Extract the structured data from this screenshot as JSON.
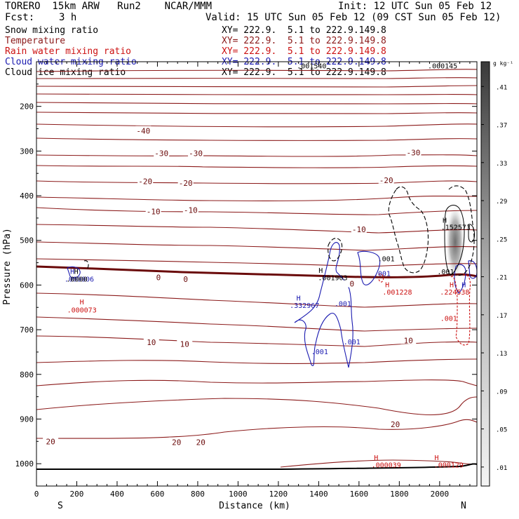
{
  "header": {
    "model": "TORERO  15km ARW   Run2    NCAR/MMM",
    "init": "Init: 12 UTC Sun 05 Feb 12",
    "fcst_label": "Fcst:",
    "fcst_value": "3 h",
    "valid": "Valid: 15 UTC Sun 05 Feb 12 (09 CST Sun 05 Feb 12)"
  },
  "legend": [
    {
      "name": "Snow mixing ratio",
      "color": "#000000",
      "xy": "XY= 222.9.  5.1 to 222.9.149.8"
    },
    {
      "name": "Temperature",
      "color": "#8b1a1a",
      "xy": "XY= 222.9.  5.1 to 222.9.149.8"
    },
    {
      "name": "Rain water mixing ratio",
      "color": "#cc1111",
      "xy": "XY= 222.9.  5.1 to 222.9.149.8"
    },
    {
      "name": "Cloud water mixing ratio",
      "color": "#1a1ab0",
      "xy": "XY= 222.9.  5.1 to 222.9.149.8"
    },
    {
      "name": "Cloud ice mixing ratio",
      "color": "#000000",
      "xy": "XY= 222.9.  5.1 to 222.9.149.8"
    }
  ],
  "chart_data": {
    "type": "cross-section contour",
    "xlabel": "Distance (km)",
    "ylabel": "Pressure (hPa)",
    "xlim": [
      0,
      2185
    ],
    "ylim_pressure": [
      1050,
      100
    ],
    "x_ticks": [
      "0",
      "200",
      "400",
      "600",
      "800",
      "1000",
      "1200",
      "1400",
      "1600",
      "1800",
      "2000"
    ],
    "x_tick_values": [
      0,
      200,
      400,
      600,
      800,
      1000,
      1200,
      1400,
      1600,
      1800,
      2000
    ],
    "y_ticks": [
      "200",
      "300",
      "400",
      "500",
      "600",
      "700",
      "800",
      "900",
      "1000"
    ],
    "y_tick_values": [
      200,
      300,
      400,
      500,
      600,
      700,
      800,
      900,
      1000
    ],
    "end_labels": {
      "left": "S",
      "right": "N"
    },
    "colorbar": {
      "unit": "g kg⁻¹",
      "labels": [
        ".01",
        ".05",
        ".09",
        ".13",
        ".17",
        ".21",
        ".25",
        ".29",
        ".33",
        ".37",
        ".41"
      ]
    },
    "temperature_labels": [
      {
        "text": "-40",
        "x": 530,
        "p": 255
      },
      {
        "text": "-30",
        "x": 620,
        "p": 305
      },
      {
        "text": "-30",
        "x": 790,
        "p": 305
      },
      {
        "text": "-30",
        "x": 1870,
        "p": 303
      },
      {
        "text": "-20",
        "x": 540,
        "p": 368
      },
      {
        "text": "-20",
        "x": 740,
        "p": 372
      },
      {
        "text": "-20",
        "x": 1735,
        "p": 365
      },
      {
        "text": "-10",
        "x": 580,
        "p": 435
      },
      {
        "text": "-10",
        "x": 765,
        "p": 432
      },
      {
        "text": "-10",
        "x": 1600,
        "p": 475
      },
      {
        "text": "0",
        "x": 605,
        "p": 583
      },
      {
        "text": "0",
        "x": 740,
        "p": 587
      },
      {
        "text": "0",
        "x": 1565,
        "p": 597
      },
      {
        "text": "10",
        "x": 570,
        "p": 728
      },
      {
        "text": "10",
        "x": 735,
        "p": 732
      },
      {
        "text": "10",
        "x": 1845,
        "p": 724
      },
      {
        "text": "20",
        "x": 70,
        "p": 950
      },
      {
        "text": "20",
        "x": 695,
        "p": 952
      },
      {
        "text": "20",
        "x": 815,
        "p": 952
      },
      {
        "text": "20",
        "x": 1780,
        "p": 912
      }
    ],
    "annotations": [
      {
        "text": "H",
        "x": 178,
        "p": 575,
        "color": "#1a1ab0"
      },
      {
        "text": "H",
        "x": 197,
        "p": 575,
        "color": "#000000"
      },
      {
        "text": ".000006",
        "x": 212,
        "p": 592,
        "color": "#1a1ab0"
      },
      {
        "text": ".0000",
        "x": 200,
        "p": 592,
        "color": "#000000"
      },
      {
        "text": "H",
        "x": 225,
        "p": 643,
        "color": "#cc1111"
      },
      {
        "text": ".000073",
        "x": 225,
        "p": 661,
        "color": "#cc1111"
      },
      {
        "text": "H",
        "x": 1300,
        "p": 635,
        "color": "#1a1ab0"
      },
      {
        "text": ".332967",
        "x": 1330,
        "p": 651,
        "color": "#1a1ab0"
      },
      {
        "text": ".001",
        "x": 1520,
        "p": 647,
        "color": "#1a1ab0"
      },
      {
        "text": ".001",
        "x": 1565,
        "p": 733,
        "color": "#1a1ab0"
      },
      {
        "text": ".001",
        "x": 1405,
        "p": 755,
        "color": "#1a1ab0"
      },
      {
        "text": "H",
        "x": 1410,
        "p": 573,
        "color": "#000000"
      },
      {
        "text": ".001903",
        "x": 1470,
        "p": 589,
        "color": "#000000"
      },
      {
        "text": ".001",
        "x": 1715,
        "p": 580,
        "color": "#1a1ab0"
      },
      {
        "text": ".001",
        "x": 1735,
        "p": 547,
        "color": "#000000"
      },
      {
        "text": "H",
        "x": 1740,
        "p": 605,
        "color": "#cc1111"
      },
      {
        "text": ".001228",
        "x": 1790,
        "p": 621,
        "color": "#cc1111"
      },
      {
        "text": "H",
        "x": 2025,
        "p": 460,
        "color": "#000000"
      },
      {
        "text": ".152573",
        "x": 2080,
        "p": 476,
        "color": "#000000"
      },
      {
        "text": ".001",
        "x": 2030,
        "p": 576,
        "color": "#000000"
      },
      {
        "text": "H",
        "x": 2060,
        "p": 605,
        "color": "#cc1111"
      },
      {
        "text": ".224538",
        "x": 2075,
        "p": 621,
        "color": "#cc1111"
      },
      {
        "text": "H",
        "x": 2120,
        "p": 605,
        "color": "#1a1ab0"
      },
      {
        "text": ".001",
        "x": 2045,
        "p": 680,
        "color": "#cc1111"
      },
      {
        "text": ".001540",
        "x": 1365,
        "p": 115,
        "color": "#000000"
      },
      {
        "text": ".000145",
        "x": 2015,
        "p": 115,
        "color": "#000000"
      },
      {
        "text": "H",
        "x": 1685,
        "p": 992,
        "color": "#cc1111"
      },
      {
        "text": ".000039",
        "x": 1735,
        "p": 1008,
        "color": "#cc1111"
      },
      {
        "text": "H",
        "x": 1985,
        "p": 992,
        "color": "#cc1111"
      },
      {
        "text": ".000129",
        "x": 2045,
        "p": 1008,
        "color": "#cc1111"
      }
    ]
  }
}
